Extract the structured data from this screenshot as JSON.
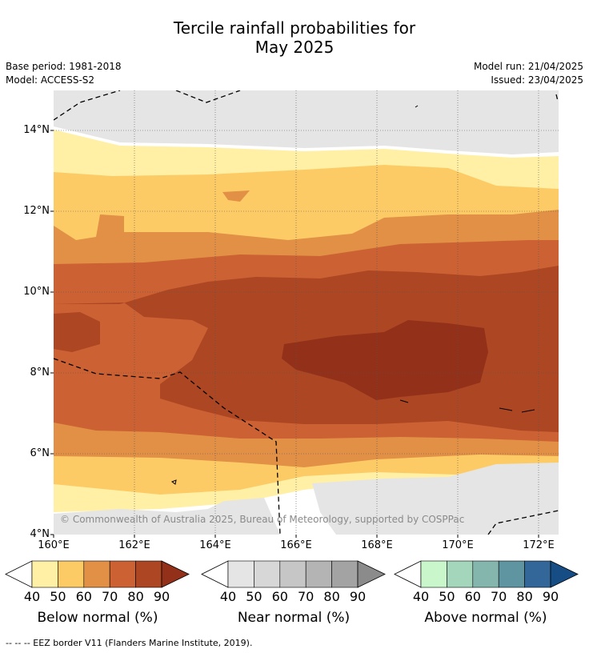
{
  "header": {
    "title_line1": "Tercile rainfall probabilities for",
    "title_line2": "May 2025",
    "base_period": "Base period: 1981-2018",
    "model": "Model: ACCESS-S2",
    "model_run": "Model run: 21/04/2025",
    "issued": "Issued: 23/04/2025"
  },
  "map": {
    "lat_labels": [
      "14°N",
      "12°N",
      "10°N",
      "8°N",
      "6°N",
      "4°N"
    ],
    "lon_labels": [
      "160°E",
      "162°E",
      "164°E",
      "166°E",
      "168°E",
      "170°E",
      "172°E"
    ],
    "credit": "© Commonwealth of Australia 2025, Bureau of Meteorology, supported by COSPPac"
  },
  "colorbars": [
    {
      "title": "Below normal (%)",
      "ticks": [
        "40",
        "50",
        "60",
        "70",
        "80",
        "90"
      ],
      "colors": [
        "#fff0a6",
        "#fdcb66",
        "#e19046",
        "#cc6133",
        "#ac4623",
        "#933019"
      ]
    },
    {
      "title": "Near normal (%)",
      "ticks": [
        "40",
        "50",
        "60",
        "70",
        "80",
        "90"
      ],
      "colors": [
        "#e5e5e5",
        "#d7d7d7",
        "#c6c6c6",
        "#b4b4b4",
        "#a3a3a3",
        "#8b8b8b"
      ]
    },
    {
      "title": "Above normal (%)",
      "ticks": [
        "40",
        "50",
        "60",
        "70",
        "80",
        "90"
      ],
      "colors": [
        "#c9f7cb",
        "#a3d6bb",
        "#84b6ae",
        "#5f94a1",
        "#336699",
        "#174d85"
      ]
    }
  ],
  "footnote": "--  --  -- EEZ border V11 (Flanders Marine Institute, 2019)."
}
